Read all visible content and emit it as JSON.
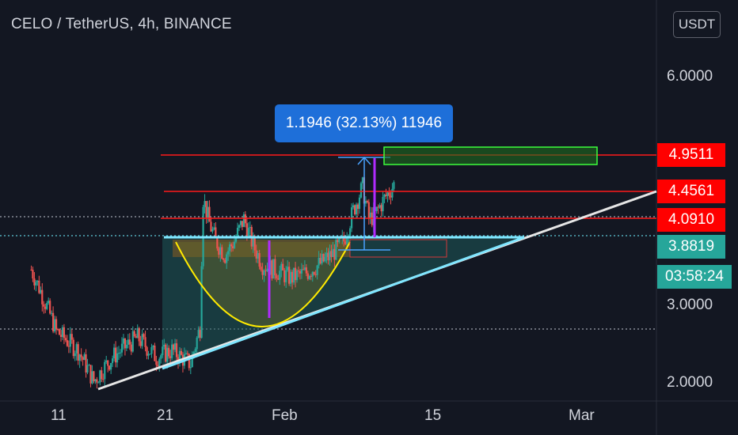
{
  "header": {
    "title": "CELO / TetherUS, 4h, BINANCE",
    "currency_button": "USDT"
  },
  "colors": {
    "background": "#131722",
    "up": "#26a69a",
    "down": "#ef5350",
    "resistance": "#ff1a1a",
    "support_line": "#e6e6e6",
    "triangle_line": "#7fe6ff",
    "cup": "#ffea00",
    "measure": "#1e6fd9",
    "target_box": "#00ff00",
    "tag_red": "#ff0000",
    "tag_teal": "#26a69a"
  },
  "measure_tooltip": "1.1946 (32.13%) 11946",
  "chart_data": {
    "type": "candlestick",
    "title": "CELO / TetherUS, 4h, BINANCE",
    "y_axis": {
      "ticks": [
        "6.0000",
        "3.0000",
        "2.0000"
      ],
      "scale": "log",
      "ylim": [
        1.85,
        7.3
      ]
    },
    "x_axis": {
      "ticks": [
        "11",
        "21",
        "Feb",
        "15",
        "Mar"
      ]
    },
    "price_levels": [
      {
        "label": "4.9511",
        "value": 4.9511,
        "color": "#ff0000"
      },
      {
        "label": "4.4561",
        "value": 4.4561,
        "color": "#ff0000"
      },
      {
        "label": "4.0910",
        "value": 4.091,
        "color": "#ff0000"
      },
      {
        "label": "3.8819",
        "value": 3.8819,
        "color": "#26a69a"
      }
    ],
    "countdown": "03:58:24",
    "dotted_levels": [
      4.1,
      3.88,
      2.72
    ],
    "series_path": [
      [
        0,
        2.9
      ],
      [
        8,
        2.35
      ],
      [
        15,
        2.2
      ],
      [
        20,
        1.98
      ],
      [
        26,
        2.15
      ],
      [
        34,
        2.3
      ],
      [
        40,
        2.15
      ],
      [
        45,
        2.2
      ],
      [
        51,
        2.1
      ],
      [
        54,
        2.38
      ],
      [
        55,
        3.7
      ],
      [
        57,
        3.4
      ],
      [
        59,
        3.2
      ],
      [
        62,
        3.05
      ],
      [
        65,
        3.2
      ],
      [
        68,
        3.45
      ],
      [
        71,
        3.15
      ],
      [
        74,
        2.95
      ],
      [
        78,
        2.9
      ],
      [
        83,
        2.82
      ],
      [
        88,
        2.87
      ],
      [
        92,
        2.95
      ],
      [
        96,
        3.05
      ],
      [
        100,
        3.2
      ],
      [
        103,
        3.55
      ],
      [
        106,
        3.85
      ],
      [
        108,
        3.45
      ],
      [
        110,
        3.5
      ],
      [
        113,
        3.7
      ],
      [
        116,
        3.88
      ]
    ],
    "x_tick_positions": {
      "11": 7,
      "21": 52,
      "Feb": 87,
      "15": 134,
      "Mar": 182
    },
    "x_range": [
      -10,
      200
    ]
  }
}
